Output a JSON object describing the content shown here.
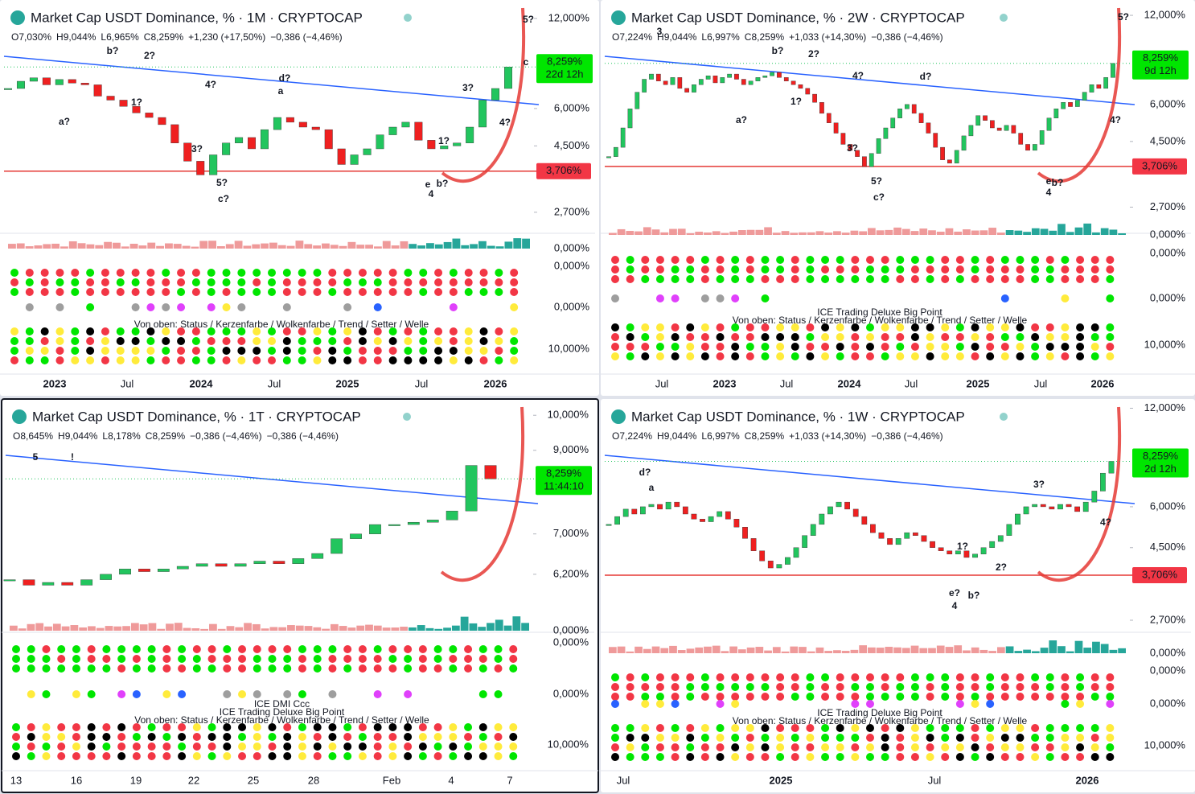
{
  "panels": [
    {
      "title": "Market Cap USDT Dominance, % · 1M · CRYPTOCAP",
      "ohlc": [
        "O7,030%",
        "H9,044%",
        "L6,965%",
        "C8,259%",
        "+1,230 (+17,50%)",
        "−0,386 (−4,46%)"
      ],
      "price_tag": {
        "value": 8.259,
        "label": "8,259%",
        "countdown": "22d 12h"
      },
      "support": {
        "value": 3.706,
        "label": "3,706%"
      },
      "log_scale": true,
      "ylim": [
        2.52,
        13.0
      ],
      "yticks": [
        {
          "value": 12,
          "label": "12,000%"
        },
        {
          "value": 6,
          "label": "6,000%"
        },
        {
          "value": 4.5,
          "label": "4,500%"
        },
        {
          "value": 2.7,
          "label": "2,700%"
        }
      ],
      "candles": [
        7.0,
        7.4,
        7.6,
        7.2,
        7.5,
        7.3,
        7.2,
        6.6,
        6.4,
        6.1,
        5.8,
        5.6,
        5.3,
        4.6,
        4.0,
        3.6,
        4.2,
        4.6,
        4.8,
        4.4,
        5.1,
        5.6,
        5.4,
        5.2,
        5.1,
        4.4,
        3.9,
        4.2,
        4.4,
        4.9,
        5.2,
        5.4,
        4.7,
        4.4,
        4.5,
        4.6,
        5.2,
        6.4,
        7.0,
        8.259
      ],
      "x_labels": [
        "2023",
        "Jul",
        "2024",
        "Jul",
        "2025",
        "Jul",
        "2026"
      ],
      "indicator_labels": [
        "0,000%",
        "0,000%",
        "0,000%",
        "10,000%"
      ],
      "annotations": [
        "5?",
        "c",
        "b?",
        "2?",
        "a?",
        "1?",
        "3?",
        "4?",
        "d?",
        "a",
        "5?",
        "c?",
        "3?",
        "1?",
        "4?",
        "e",
        "4",
        "b?"
      ],
      "notes": [
        "Von oben: Status / Kerzenfarbe / Wolkenfarbe / Trend / Setter / Welle"
      ]
    },
    {
      "title": "Market Cap USDT Dominance, % · 2W · CRYPTOCAP",
      "ohlc": [
        "O7,224%",
        "H9,044%",
        "L6,997%",
        "C8,259%",
        "+1,033 (+14,30%)",
        "−0,386 (−4,46%)"
      ],
      "price_tag": {
        "value": 8.259,
        "label": "8,259%",
        "countdown": "9d 12h"
      },
      "support": {
        "value": 3.706,
        "label": "3,706%"
      },
      "log_scale": true,
      "ylim": [
        2.42,
        12.7
      ],
      "yticks": [
        {
          "value": 12,
          "label": "12,000%"
        },
        {
          "value": 6,
          "label": "6,000%"
        },
        {
          "value": 4.5,
          "label": "4,500%"
        },
        {
          "value": 2.7,
          "label": "2,700%"
        }
      ],
      "candles": [
        4.0,
        4.3,
        5.0,
        5.8,
        6.6,
        7.3,
        7.6,
        7.2,
        7.0,
        7.4,
        6.8,
        6.6,
        7.0,
        7.3,
        7.5,
        7.1,
        7.4,
        7.6,
        7.3,
        7.0,
        7.2,
        7.4,
        7.5,
        7.7,
        7.4,
        7.2,
        7.0,
        6.8,
        6.5,
        6.1,
        5.6,
        5.2,
        4.8,
        4.4,
        4.2,
        4.0,
        3.7,
        4.1,
        4.6,
        5.0,
        5.4,
        5.8,
        6.0,
        5.6,
        5.2,
        4.8,
        4.3,
        3.9,
        3.8,
        4.2,
        4.7,
        5.1,
        5.5,
        5.3,
        5.0,
        4.9,
        5.1,
        4.8,
        4.4,
        4.2,
        4.4,
        4.9,
        5.4,
        5.8,
        6.1,
        5.9,
        6.2,
        6.6,
        7.0,
        6.8,
        7.4,
        8.259
      ],
      "x_labels": [
        "Jul",
        "2023",
        "Jul",
        "2024",
        "Jul",
        "2025",
        "Jul",
        "2026"
      ],
      "indicator_labels": [
        "0,000%",
        "0,000%",
        "0,000%",
        "10,000%"
      ],
      "annotations": [
        "5?",
        "3",
        "b?",
        "2?",
        "a?",
        "1?",
        "3?",
        "4?",
        "d?",
        "5?",
        "c?",
        "4?",
        "e",
        "4",
        "b?"
      ],
      "notes": [
        "Von oben: Status / Kerzenfarbe / Wolkenfarbe / Trend / Setter / Welle",
        "ICE Trading Deluxe Big Point"
      ]
    },
    {
      "title": "Market Cap USDT Dominance, % · 1T · CRYPTOCAP",
      "ohlc": [
        "O8,645%",
        "H9,044%",
        "L8,178%",
        "C8,259%",
        "−0,386 (−4,46%)",
        "−0,386 (−4,46%)"
      ],
      "price_tag": {
        "value": 8.259,
        "label": "8,259%",
        "countdown": "11:44:10"
      },
      "support": null,
      "log_scale": true,
      "ylim": [
        5.4,
        10.25
      ],
      "yticks": [
        {
          "value": 10,
          "label": "10,000%"
        },
        {
          "value": 9,
          "label": "9,000%"
        },
        {
          "value": 7,
          "label": "7,000%"
        },
        {
          "value": 6.2,
          "label": "6,200%"
        }
      ],
      "candles": [
        6.1,
        6.0,
        6.05,
        6.0,
        6.1,
        6.2,
        6.3,
        6.25,
        6.3,
        6.35,
        6.4,
        6.35,
        6.4,
        6.45,
        6.4,
        6.5,
        6.6,
        6.9,
        7.0,
        7.2,
        7.2,
        7.25,
        7.3,
        7.5,
        8.6,
        8.259
      ],
      "x_labels": [
        "13",
        "16",
        "19",
        "22",
        "25",
        "28",
        "Feb",
        "4",
        "7"
      ],
      "indicator_labels": [
        "0,000%",
        "0,000%",
        "0,000%",
        "10,000%"
      ],
      "annotations": [
        "5",
        "!"
      ],
      "notes": [
        "Von oben: Status / Kerzenfarbe / Wolkenfarbe / Trend / Setter / Welle",
        "ICE Trading Deluxe Big Point",
        "ICE DMI Ccc"
      ]
    },
    {
      "title": "Market Cap USDT Dominance, % · 1W · CRYPTOCAP",
      "ohlc": [
        "O7,224%",
        "H9,044%",
        "L6,997%",
        "C8,259%",
        "+1,033 (+14,30%)",
        "−0,386 (−4,46%)"
      ],
      "price_tag": {
        "value": 8.259,
        "label": "8,259%",
        "countdown": "2d 12h"
      },
      "support": {
        "value": 3.706,
        "label": "3,706%"
      },
      "log_scale": true,
      "ylim": [
        2.7,
        12.1
      ],
      "yticks": [
        {
          "value": 12,
          "label": "12,000%"
        },
        {
          "value": 6,
          "label": "6,000%"
        },
        {
          "value": 4.5,
          "label": "4,500%"
        },
        {
          "value": 2.7,
          "label": "2,700%"
        }
      ],
      "candles": [
        5.3,
        5.6,
        5.9,
        5.7,
        6.0,
        6.1,
        5.9,
        6.2,
        6.0,
        5.7,
        5.5,
        5.4,
        5.6,
        5.8,
        5.5,
        5.2,
        4.8,
        4.4,
        4.1,
        3.9,
        4.0,
        4.2,
        4.5,
        4.9,
        5.3,
        5.7,
        6.0,
        6.2,
        5.9,
        5.6,
        5.3,
        5.0,
        4.8,
        4.6,
        4.8,
        5.0,
        4.9,
        4.7,
        4.5,
        4.4,
        4.3,
        4.4,
        4.2,
        4.3,
        4.5,
        4.7,
        4.9,
        5.3,
        5.7,
        6.0,
        6.1,
        6.0,
        5.9,
        6.1,
        6.0,
        5.8,
        6.2,
        6.7,
        7.6,
        8.259
      ],
      "x_labels": [
        "Jul",
        "2025",
        "Jul",
        "2026"
      ],
      "indicator_labels": [
        "0,000%",
        "0,000%",
        "0,000%",
        "10,000%"
      ],
      "annotations": [
        "d?",
        "a",
        "3?",
        "4?",
        "1?",
        "2?",
        "e?",
        "4",
        "b?"
      ],
      "notes": [
        "Von oben: Status / Kerzenfarbe / Wolkenfarbe / Trend / Setter / Welle",
        "ICE Trading Deluxe Big Point"
      ]
    }
  ]
}
